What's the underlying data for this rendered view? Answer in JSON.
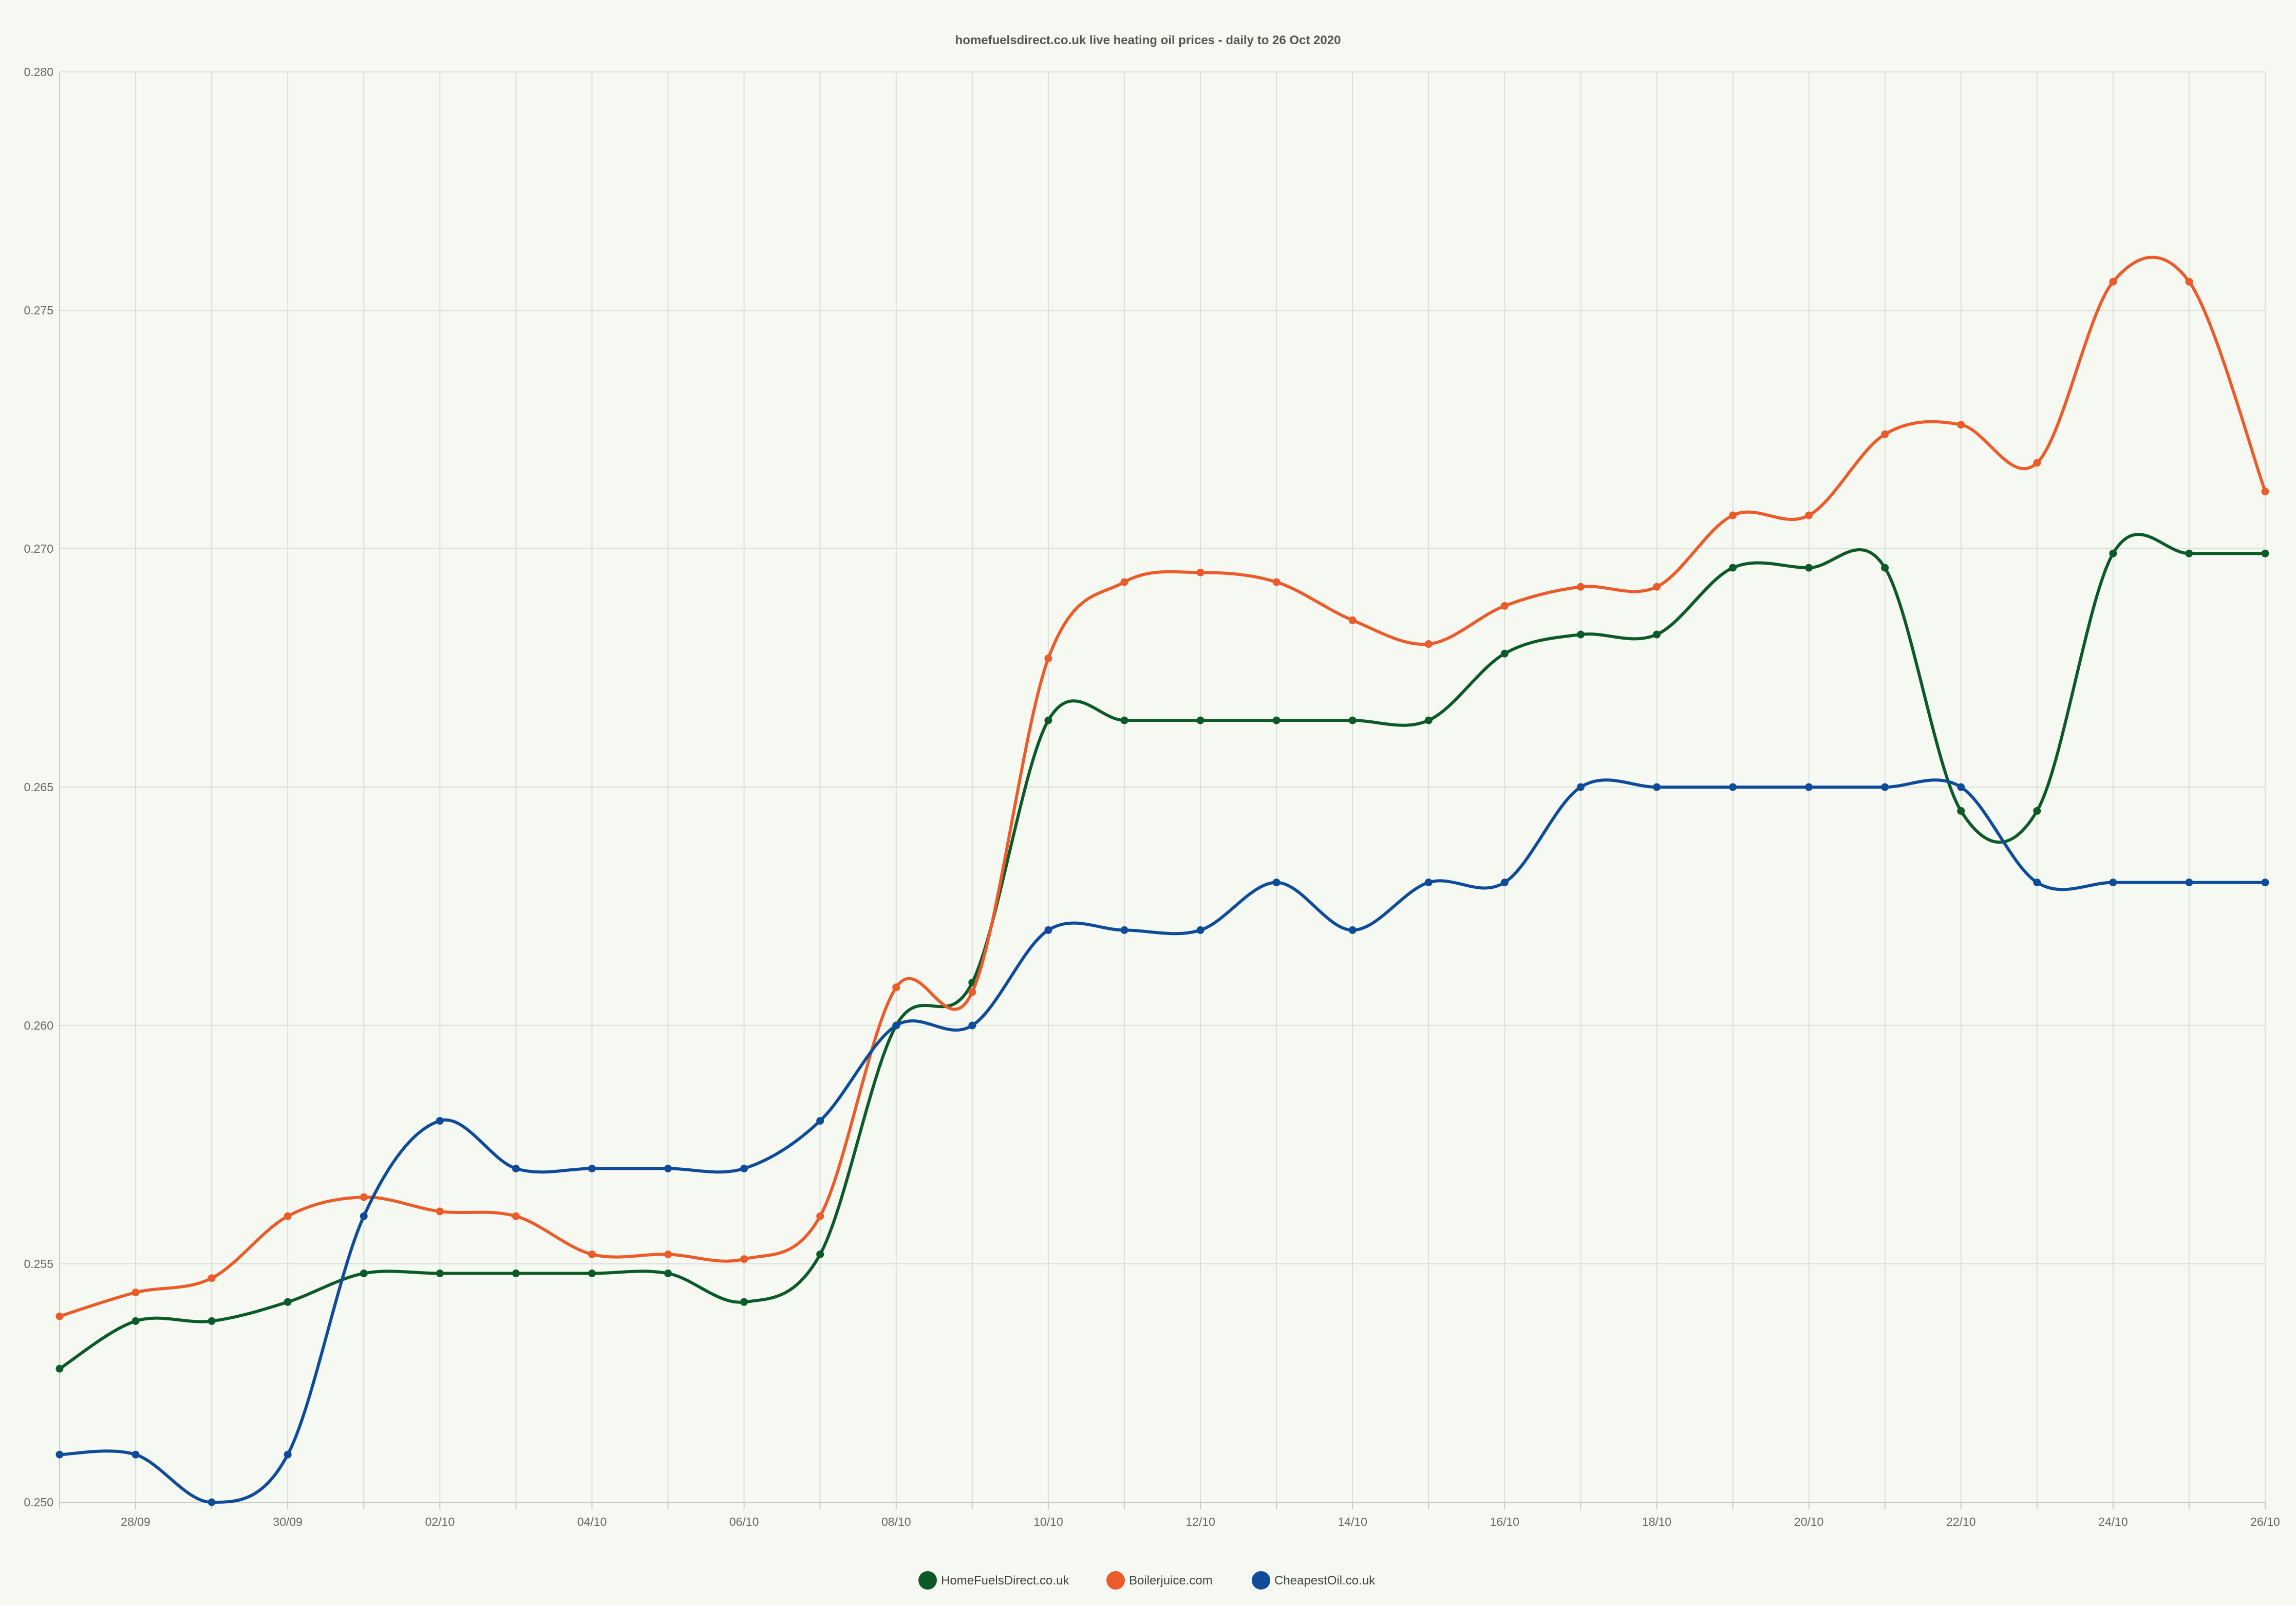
{
  "chart_data": {
    "type": "line",
    "title": "homefuelsdirect.co.uk live heating oil prices - daily to 26 Oct 2020",
    "xlabel": "",
    "ylabel": "",
    "ylim": [
      0.25,
      0.28
    ],
    "yticks": [
      "0.250",
      "0.255",
      "0.260",
      "0.265",
      "0.270",
      "0.275",
      "0.280"
    ],
    "x": [
      "27/09",
      "28/09",
      "29/09",
      "30/09",
      "01/10",
      "02/10",
      "03/10",
      "04/10",
      "05/10",
      "06/10",
      "07/10",
      "08/10",
      "09/10",
      "10/10",
      "11/10",
      "12/10",
      "13/10",
      "14/10",
      "15/10",
      "16/10",
      "17/10",
      "18/10",
      "19/10",
      "20/10",
      "21/10",
      "22/10",
      "23/10",
      "24/10",
      "25/10",
      "26/10"
    ],
    "xtick_labels": [
      "28/09",
      "30/09",
      "02/10",
      "04/10",
      "06/10",
      "08/10",
      "10/10",
      "12/10",
      "14/10",
      "16/10",
      "18/10",
      "20/10",
      "22/10",
      "24/10",
      "26/10"
    ],
    "grid": true,
    "legend_position": "bottom-center",
    "series": [
      {
        "name": "HomeFuelsDirect.co.uk",
        "color": "#0c5a27",
        "values": [
          0.2528,
          0.2538,
          0.2538,
          0.2542,
          0.2548,
          0.2548,
          0.2548,
          0.2548,
          0.2548,
          0.2542,
          0.2552,
          0.26,
          0.2609,
          0.2664,
          0.2664,
          0.2664,
          0.2664,
          0.2664,
          0.2664,
          0.2678,
          0.2682,
          0.2682,
          0.2696,
          0.2696,
          0.2696,
          0.2645,
          0.2645,
          0.2699,
          0.2699,
          0.2699
        ]
      },
      {
        "name": "Boilerjuice.com",
        "color": "#ec5b2a",
        "values": [
          0.2539,
          0.2544,
          0.2547,
          0.256,
          0.2564,
          0.2561,
          0.256,
          0.2552,
          0.2552,
          0.2551,
          0.256,
          0.2608,
          0.2607,
          0.2677,
          0.2693,
          0.2695,
          0.2693,
          0.2685,
          0.268,
          0.2688,
          0.2692,
          0.2692,
          0.2707,
          0.2707,
          0.2724,
          0.2726,
          0.2718,
          0.2756,
          0.2756,
          0.2712
        ]
      },
      {
        "name": "CheapestOil.co.uk",
        "color": "#0e4c9a",
        "values": [
          0.251,
          0.251,
          0.25,
          0.251,
          0.256,
          0.258,
          0.257,
          0.257,
          0.257,
          0.257,
          0.258,
          0.26,
          0.26,
          0.262,
          0.262,
          0.262,
          0.263,
          0.262,
          0.263,
          0.263,
          0.265,
          0.265,
          0.265,
          0.265,
          0.265,
          0.265,
          0.263,
          0.263,
          0.263,
          0.263
        ]
      }
    ]
  }
}
